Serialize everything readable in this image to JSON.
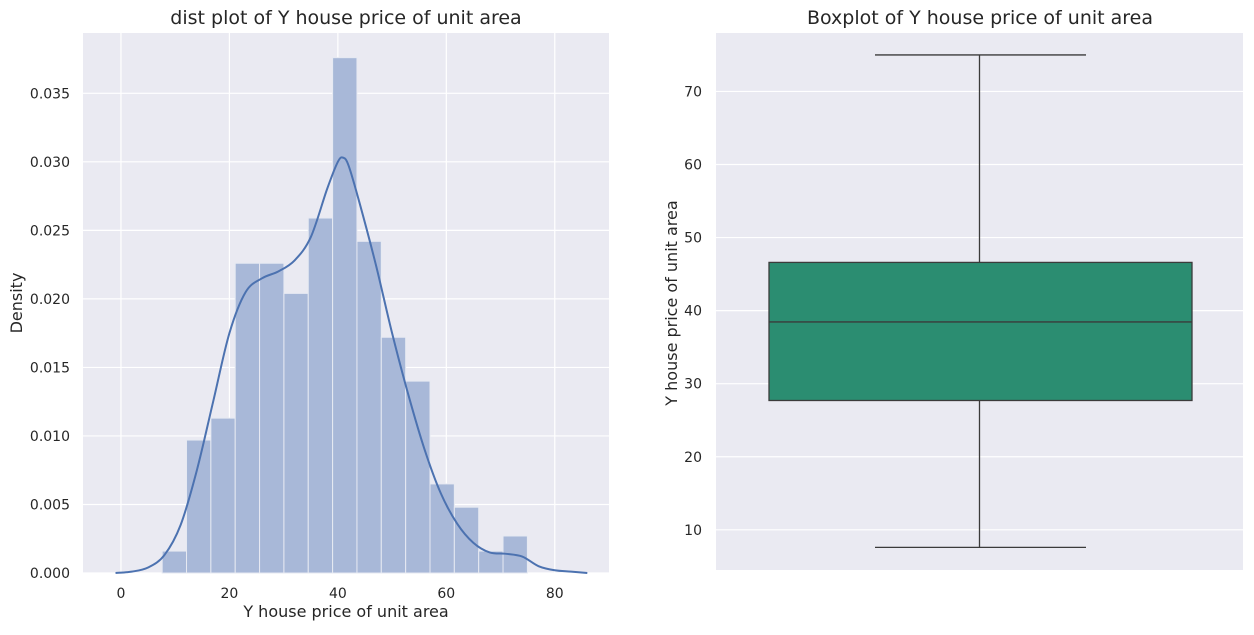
{
  "chart_data": [
    {
      "type": "histogram",
      "title": "dist plot of Y house price of unit area",
      "xlabel": "Y house price of unit area",
      "ylabel": "Density",
      "xlim": [
        -7,
        90
      ],
      "ylim": [
        0,
        0.0394
      ],
      "xticks": [
        0,
        20,
        40,
        60,
        80
      ],
      "yticks": [
        0.0,
        0.005,
        0.01,
        0.015,
        0.02,
        0.025,
        0.03,
        0.035
      ],
      "ytick_labels": [
        "0.000",
        "0.005",
        "0.010",
        "0.015",
        "0.020",
        "0.025",
        "0.030",
        "0.035"
      ],
      "grid": true,
      "bar_color": "#a8b8d8",
      "line_color": "#4c72b0",
      "bins": [
        {
          "x0": 7.6,
          "x1": 12.09,
          "density": 0.0016
        },
        {
          "x0": 12.09,
          "x1": 16.58,
          "density": 0.0097
        },
        {
          "x0": 16.58,
          "x1": 21.07,
          "density": 0.0113
        },
        {
          "x0": 21.07,
          "x1": 25.56,
          "density": 0.0226
        },
        {
          "x0": 25.56,
          "x1": 30.05,
          "density": 0.0226
        },
        {
          "x0": 30.05,
          "x1": 34.54,
          "density": 0.0204
        },
        {
          "x0": 34.54,
          "x1": 39.03,
          "density": 0.0259
        },
        {
          "x0": 39.03,
          "x1": 43.52,
          "density": 0.0376
        },
        {
          "x0": 43.52,
          "x1": 48.01,
          "density": 0.0242
        },
        {
          "x0": 48.01,
          "x1": 52.5,
          "density": 0.0172
        },
        {
          "x0": 52.5,
          "x1": 56.99,
          "density": 0.014
        },
        {
          "x0": 56.99,
          "x1": 61.48,
          "density": 0.0065
        },
        {
          "x0": 61.48,
          "x1": 65.97,
          "density": 0.0048
        },
        {
          "x0": 65.97,
          "x1": 70.46,
          "density": 0.0016
        },
        {
          "x0": 70.46,
          "x1": 74.95,
          "density": 0.0027
        }
      ],
      "kde": {
        "x": [
          -1,
          2,
          5,
          8,
          11,
          14,
          17,
          20,
          23,
          26,
          29,
          32,
          35,
          38,
          40,
          41,
          42,
          44,
          47,
          50,
          53,
          56,
          59,
          62,
          65,
          68,
          71,
          74,
          77,
          80,
          83,
          86
        ],
        "y": [
          0.0,
          0.0001,
          0.0004,
          0.0013,
          0.0035,
          0.0075,
          0.0125,
          0.0175,
          0.0205,
          0.0215,
          0.022,
          0.0228,
          0.0245,
          0.028,
          0.03,
          0.0303,
          0.0297,
          0.027,
          0.0225,
          0.0175,
          0.013,
          0.009,
          0.0058,
          0.0036,
          0.0022,
          0.0015,
          0.0014,
          0.0012,
          0.0005,
          0.0002,
          0.0001,
          0.0
        ]
      }
    },
    {
      "type": "box",
      "title": "Boxplot of Y house price of unit area",
      "xlabel": "",
      "ylabel": "Y house price of unit area",
      "ylim": [
        4.5,
        78
      ],
      "yticks": [
        10,
        20,
        30,
        40,
        50,
        60,
        70
      ],
      "grid": true,
      "box_color": "#2b8d71",
      "edge_color": "#3b3b3b",
      "stats": {
        "whisker_low": 7.6,
        "q1": 27.7,
        "median": 38.45,
        "q3": 46.6,
        "whisker_high": 75.0
      }
    }
  ]
}
